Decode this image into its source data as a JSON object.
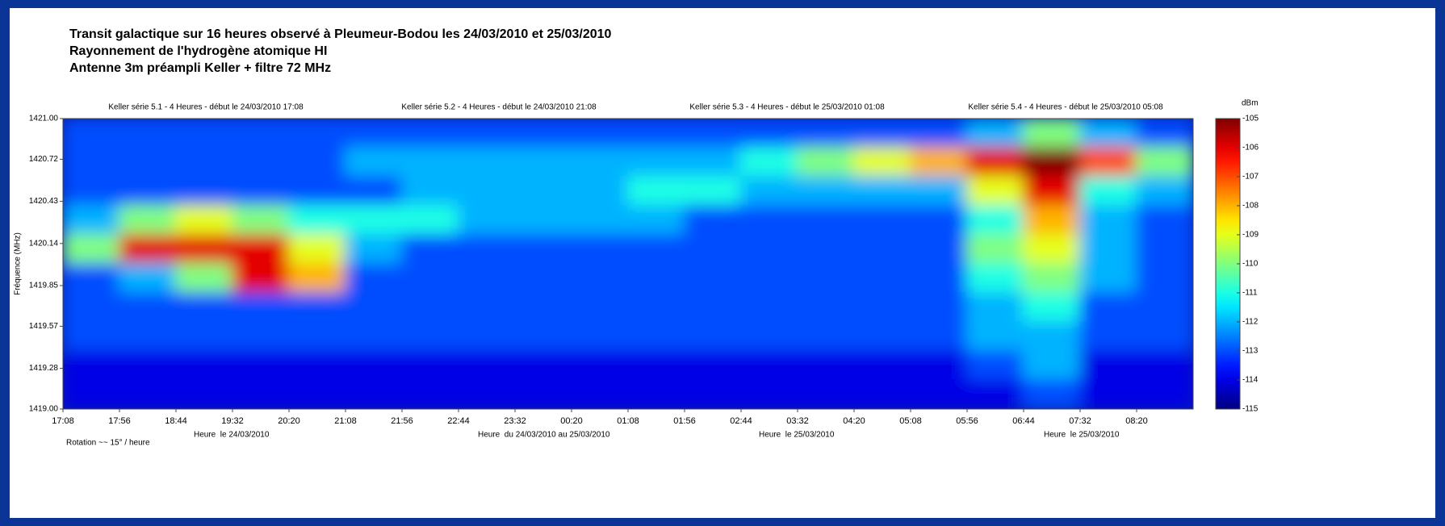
{
  "chart_data": {
    "type": "heatmap",
    "title": "Transit galactique sur 16 heures observé à Pleumeur-Bodou les 24/03/2010 et 25/03/2010",
    "subtitle": [
      "Rayonnement de l'hydrogène atomique HI",
      "Antenne 3m préampli Keller + filtre 72 MHz"
    ],
    "panel_labels": [
      "Keller série 5.1 - 4 Heures - début le 24/03/2010 17:08",
      "Keller série 5.2 - 4 Heures - début le 24/03/2010 21:08",
      "Keller série 5.3 - 4 Heures - début le 25/03/2010 01:08",
      "Keller série 5.4 - 4 Heures - début le 25/03/2010 05:08"
    ],
    "annotations": [
      "Rotation ~~ 15° / heure",
      "Heure  le 24/03/2010",
      "Heure  du 24/03/2010 au 25/03/2010",
      "Heure  le 25/03/2010",
      "Heure  le 25/03/2010"
    ],
    "ylabel": "Fréquence (MHz)",
    "categories": [
      "17:08",
      "17:56",
      "18:44",
      "19:32",
      "20:20",
      "21:08",
      "21:56",
      "22:44",
      "23:32",
      "00:20",
      "01:08",
      "01:56",
      "02:44",
      "03:32",
      "04:20",
      "05:08",
      "05:56",
      "06:44",
      "07:32",
      "08:20"
    ],
    "ylim": [
      1419,
      1421
    ],
    "yticks": [
      {
        "value": 1421,
        "label": "1421.00"
      },
      1420.72,
      1420.43,
      1420.14,
      1419.85,
      1419.57,
      1419.28,
      {
        "value": 1419,
        "label": "1419.00"
      }
    ],
    "values": [
      [
        -113,
        -113,
        -113,
        -113,
        -113,
        -113,
        -113,
        -113,
        -113,
        -113,
        -113,
        -113,
        -113,
        -113,
        -113,
        -113,
        -112,
        -110,
        -112,
        -113
      ],
      [
        -113,
        -113,
        -113,
        -113,
        -113,
        -112,
        -112,
        -112,
        -112,
        -112,
        -112,
        -112,
        -111,
        -110,
        -109,
        -108,
        -106,
        -105,
        -107,
        -110
      ],
      [
        -113,
        -113,
        -113,
        -113,
        -113,
        -113,
        -112,
        -112,
        -112,
        -112,
        -111,
        -111,
        -112,
        -112,
        -112,
        -112,
        -109,
        -106,
        -111,
        -112
      ],
      [
        -112,
        -110,
        -109,
        -110,
        -111,
        -111,
        -111,
        -112,
        -112,
        -112,
        -112,
        -113,
        -113,
        -113,
        -113,
        -113,
        -111,
        -108,
        -112,
        -113
      ],
      [
        -110,
        -106,
        -106,
        -106,
        -109,
        -112,
        -113,
        -113,
        -113,
        -113,
        -113,
        -113,
        -113,
        -113,
        -113,
        -113,
        -110,
        -109,
        -112,
        -113
      ],
      [
        -113,
        -112,
        -110,
        -106,
        -108,
        -113,
        -113,
        -113,
        -113,
        -113,
        -113,
        -113,
        -113,
        -113,
        -113,
        -113,
        -111,
        -110,
        -112,
        -113
      ],
      [
        -113,
        -113,
        -113,
        -113,
        -113,
        -113,
        -113,
        -113,
        -113,
        -113,
        -113,
        -113,
        -113,
        -113,
        -113,
        -113,
        -112,
        -111,
        -113,
        -113
      ],
      [
        -113,
        -113,
        -113,
        -113,
        -113,
        -113,
        -113,
        -113,
        -113,
        -113,
        -113,
        -113,
        -113,
        -113,
        -113,
        -113,
        -112,
        -112,
        -113,
        -113
      ],
      [
        -114,
        -114,
        -114,
        -114,
        -114,
        -114,
        -114,
        -114,
        -114,
        -114,
        -114,
        -114,
        -114,
        -114,
        -114,
        -114,
        -113,
        -112,
        -114,
        -114
      ],
      [
        -114,
        -114,
        -114,
        -114,
        -114,
        -114,
        -114,
        -114,
        -114,
        -114,
        -114,
        -114,
        -114,
        -114,
        -114,
        -114,
        -114,
        -113,
        -114,
        -114
      ]
    ],
    "colorbar": {
      "label": "dBm",
      "lim": [
        -115,
        -105
      ],
      "ticks": [
        -105,
        -106,
        -107,
        -108,
        -109,
        -110,
        -111,
        -112,
        -113,
        -114,
        -115
      ]
    }
  }
}
